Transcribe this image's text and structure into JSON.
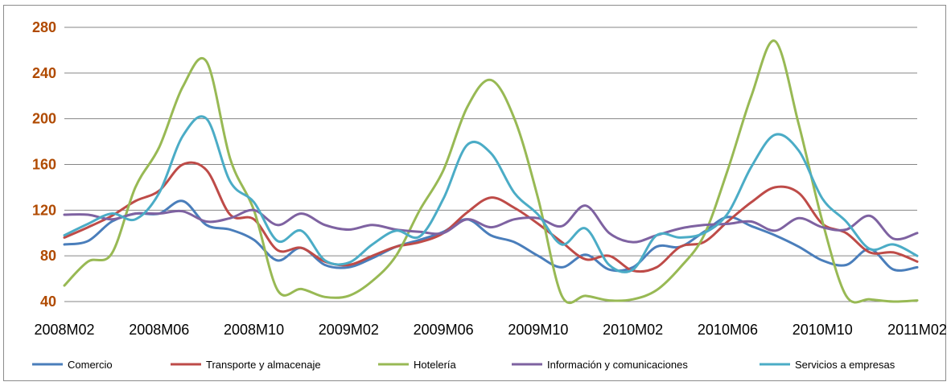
{
  "chart_data": {
    "type": "line",
    "title": "",
    "xlabel": "",
    "ylabel": "",
    "ylim": [
      40,
      280
    ],
    "yticks": [
      40,
      80,
      120,
      160,
      200,
      240,
      280
    ],
    "grid": true,
    "legend_position": "bottom",
    "x": [
      "2008M02",
      "2008M03",
      "2008M04",
      "2008M05",
      "2008M06",
      "2008M07",
      "2008M08",
      "2008M09",
      "2008M10",
      "2008M11",
      "2008M12",
      "2009M01",
      "2009M02",
      "2009M03",
      "2009M04",
      "2009M05",
      "2009M06",
      "2009M07",
      "2009M08",
      "2009M09",
      "2009M10",
      "2009M11",
      "2009M12",
      "2010M01",
      "2010M02",
      "2010M03",
      "2010M04",
      "2010M05",
      "2010M06",
      "2010M07",
      "2010M08",
      "2010M09",
      "2010M10",
      "2010M11",
      "2010M12",
      "2011M01",
      "2011M02"
    ],
    "x_tick_labels": [
      "2008M02",
      "2008M06",
      "2008M10",
      "2009M02",
      "2009M06",
      "2009M10",
      "2010M02",
      "2010M06",
      "2010M10",
      "2011M02"
    ],
    "series": [
      {
        "name": "Comercio",
        "color": "#4a7ebb",
        "values": [
          90,
          93,
          110,
          117,
          117,
          128,
          107,
          103,
          94,
          76,
          87,
          72,
          70,
          78,
          88,
          94,
          101,
          112,
          98,
          92,
          80,
          70,
          81,
          68,
          70,
          88,
          88,
          101,
          114,
          106,
          98,
          88,
          76,
          72,
          86,
          68,
          70
        ]
      },
      {
        "name": "Transporte y almacenaje",
        "color": "#be4b48",
        "values": [
          96,
          105,
          115,
          128,
          137,
          160,
          155,
          116,
          112,
          85,
          87,
          75,
          72,
          80,
          88,
          92,
          100,
          118,
          131,
          122,
          108,
          92,
          77,
          80,
          67,
          70,
          88,
          92,
          110,
          127,
          140,
          135,
          108,
          100,
          83,
          83,
          75
        ]
      },
      {
        "name": "Hotelería",
        "color": "#98b954",
        "values": [
          54,
          75,
          82,
          140,
          175,
          228,
          250,
          165,
          120,
          50,
          51,
          44,
          45,
          58,
          80,
          120,
          155,
          210,
          234,
          200,
          130,
          45,
          45,
          41,
          42,
          50,
          70,
          98,
          155,
          220,
          268,
          195,
          110,
          45,
          42,
          40,
          41
        ]
      },
      {
        "name": "Información y comunicaciones",
        "color": "#7e62a1",
        "values": [
          116,
          116,
          112,
          117,
          117,
          119,
          110,
          113,
          120,
          107,
          117,
          107,
          103,
          107,
          103,
          101,
          100,
          112,
          105,
          112,
          113,
          106,
          124,
          100,
          92,
          98,
          104,
          107,
          108,
          110,
          102,
          113,
          105,
          103,
          115,
          95,
          100
        ]
      },
      {
        "name": "Servicios a empresas",
        "color": "#4bacc6",
        "values": [
          98,
          108,
          117,
          112,
          135,
          185,
          200,
          145,
          127,
          93,
          102,
          76,
          74,
          90,
          102,
          97,
          130,
          177,
          170,
          135,
          116,
          90,
          104,
          72,
          68,
          98,
          96,
          100,
          117,
          158,
          186,
          172,
          130,
          110,
          86,
          90,
          80
        ]
      }
    ]
  }
}
